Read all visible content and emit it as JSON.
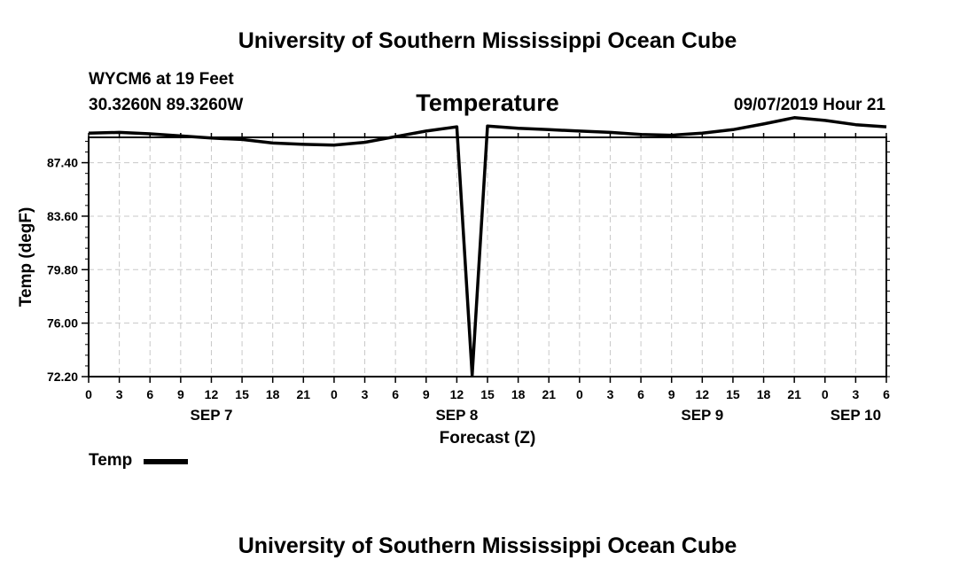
{
  "header": {
    "institution_top": "University of Southern Mississippi Ocean Cube",
    "institution_bottom": "University of Southern Mississippi Ocean Cube",
    "station": "WYCM6 at 19 Feet",
    "location": "30.3260N 89.3260W",
    "datetime": "09/07/2019 Hour 21"
  },
  "chart_data": {
    "type": "line",
    "title": "Temperature",
    "xlabel": "Forecast (Z)",
    "ylabel": "Temp (degF)",
    "ylim": [
      72.2,
      89.2
    ],
    "xlim": [
      0,
      78
    ],
    "y_ticks": [
      "72.20",
      "76.00",
      "79.80",
      "83.60",
      "87.40"
    ],
    "y_tick_values": [
      72.2,
      76.0,
      79.8,
      83.6,
      87.4
    ],
    "x_tick_labels": [
      "0",
      "3",
      "6",
      "9",
      "12",
      "15",
      "18",
      "21",
      "0",
      "3",
      "6",
      "9",
      "12",
      "15",
      "18",
      "21",
      "0",
      "3",
      "6",
      "9",
      "12",
      "15",
      "18",
      "21",
      "0",
      "3",
      "6"
    ],
    "day_labels": [
      {
        "label": "SEP 7",
        "x": 12
      },
      {
        "label": "SEP 8",
        "x": 36
      },
      {
        "label": "SEP 9",
        "x": 60
      },
      {
        "label": "SEP 10",
        "x": 75
      }
    ],
    "grid": true,
    "series": [
      {
        "name": "Temp",
        "color": "#000000",
        "x": [
          0,
          3,
          6,
          9,
          12,
          15,
          18,
          21,
          24,
          27,
          30,
          33,
          36,
          37.5,
          39,
          42,
          45,
          48,
          51,
          54,
          57,
          60,
          63,
          66,
          69,
          72,
          75,
          78
        ],
        "y": [
          89.5,
          89.55,
          89.45,
          89.3,
          89.15,
          89.05,
          88.8,
          88.7,
          88.65,
          88.85,
          89.25,
          89.65,
          89.95,
          72.3,
          90.0,
          89.85,
          89.75,
          89.65,
          89.55,
          89.4,
          89.35,
          89.5,
          89.75,
          90.15,
          90.6,
          90.4,
          90.1,
          89.95
        ]
      }
    ],
    "legend": [
      {
        "label": "Temp",
        "placement": "bottom-left"
      }
    ]
  }
}
